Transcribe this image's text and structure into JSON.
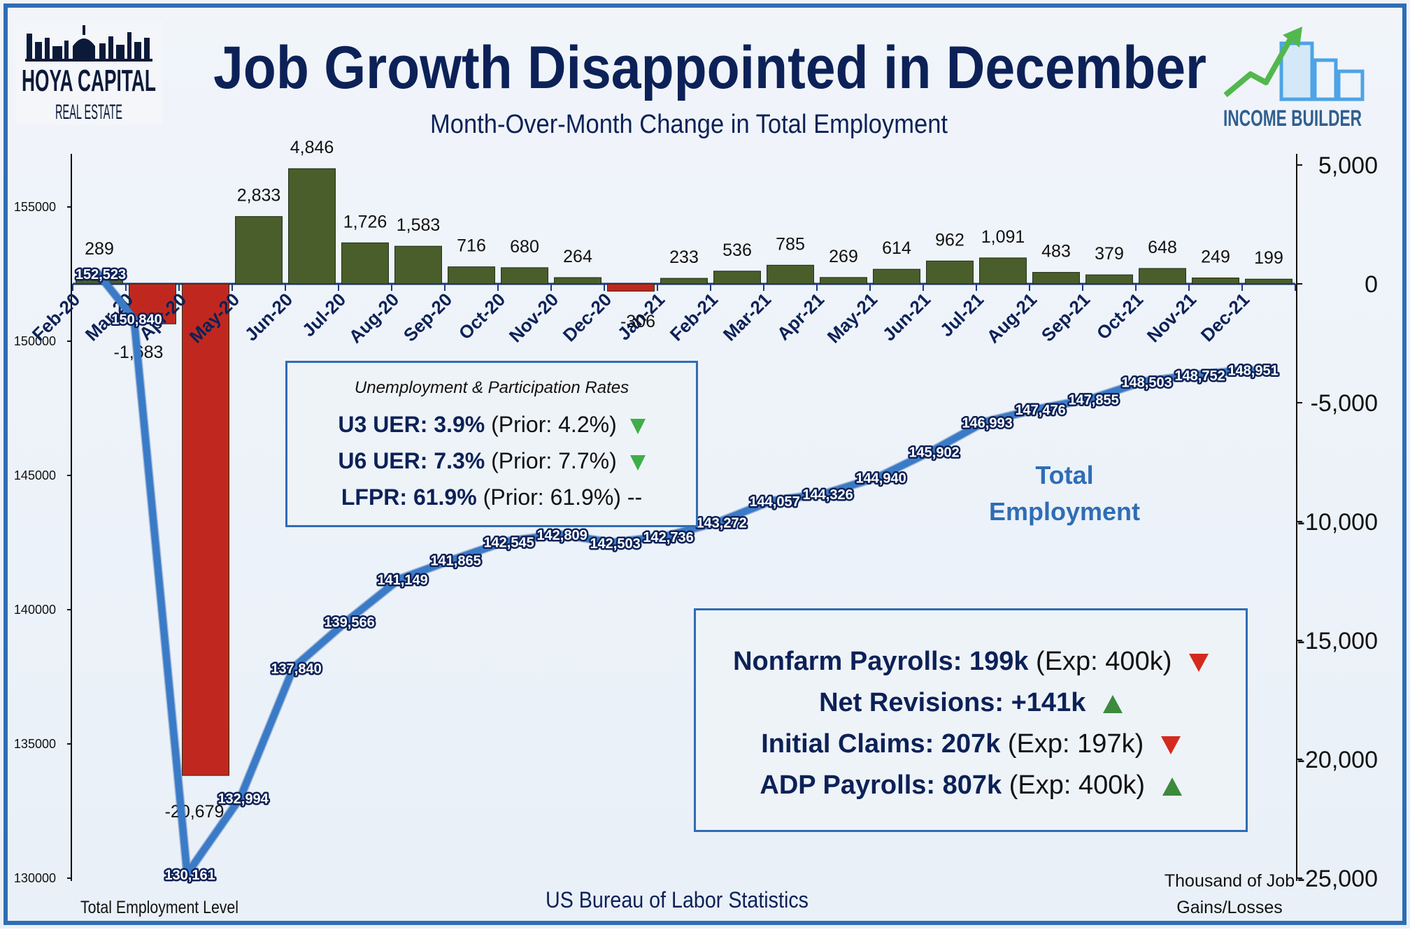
{
  "header": {
    "title": "Job Growth Disappointed in December",
    "subtitle": "Month-Over-Month Change in Total Employment"
  },
  "logos": {
    "left_line1": "HOYA CAPITAL",
    "left_line2": "REAL ESTATE",
    "right": "INCOME BUILDER"
  },
  "footer": {
    "left_axis_label": "Total Employment Level",
    "source": "US Bureau of Labor Statistics",
    "right_axis_label_1": "Thousand of Job",
    "right_axis_label_2": "Gains/Losses"
  },
  "series_label": {
    "line1": "Total",
    "line2": "Employment"
  },
  "rates_box": {
    "heading": "Unemployment & Participation Rates",
    "rows": [
      {
        "label": "U3 UER: 3.9%",
        "detail": "(Prior: 4.2%)",
        "trend": "down"
      },
      {
        "label": "U6 UER: 7.3%",
        "detail": "(Prior: 7.7%)",
        "trend": "down"
      },
      {
        "label": "LFPR: 61.9%",
        "detail": "(Prior: 61.9%) --",
        "trend": "flat"
      }
    ]
  },
  "stats_box": {
    "rows": [
      {
        "label": "Nonfarm Payrolls: 199k",
        "detail": "(Exp: 400k)",
        "trend": "down"
      },
      {
        "label": "Net Revisions: +141k",
        "detail": "",
        "trend": "up"
      },
      {
        "label": "Initial Claims: 207k",
        "detail": "(Exp: 197k)",
        "trend": "down"
      },
      {
        "label": "ADP Payrolls: 807k",
        "detail": "(Exp: 400k)",
        "trend": "up"
      }
    ]
  },
  "colors": {
    "positive_bar": "#4a5e2c",
    "negative_bar": "#c0281f",
    "line": "#3a7bc8",
    "title": "#0c2157",
    "label_blue": "#2f6db5"
  },
  "chart_data": {
    "type": "bar",
    "categories": [
      "Feb-20",
      "Mar-20",
      "Apr-20",
      "May-20",
      "Jun-20",
      "Jul-20",
      "Aug-20",
      "Sep-20",
      "Oct-20",
      "Nov-20",
      "Dec-20",
      "Jan-21",
      "Feb-21",
      "Mar-21",
      "Apr-21",
      "May-21",
      "Jun-21",
      "Jul-21",
      "Aug-21",
      "Sep-21",
      "Oct-21",
      "Nov-21",
      "Dec-21"
    ],
    "change_labels": [
      "289",
      "-1,683",
      "-20,679",
      "2,833",
      "4,846",
      "1,726",
      "1,583",
      "716",
      "680",
      "264",
      "-306",
      "233",
      "536",
      "785",
      "269",
      "614",
      "962",
      "1,091",
      "483",
      "379",
      "648",
      "249",
      "199"
    ],
    "change_values": [
      289,
      -1683,
      -20679,
      2833,
      4846,
      1726,
      1583,
      716,
      680,
      264,
      -306,
      233,
      536,
      785,
      269,
      614,
      962,
      1091,
      483,
      379,
      648,
      249,
      199
    ],
    "level_labels": [
      "152,523",
      "150,840",
      "130,161",
      "132,994",
      "137,840",
      "139,566",
      "141,149",
      "141,865",
      "142,545",
      "142,809",
      "142,503",
      "142,736",
      "143,272",
      "144,057",
      "144,326",
      "144,940",
      "145,902",
      "146,993",
      "147,476",
      "147,855",
      "148,503",
      "148,752",
      "148,951"
    ],
    "level_values": [
      152523,
      150840,
      130161,
      132994,
      137840,
      139566,
      141149,
      141865,
      142545,
      142809,
      142503,
      142736,
      143272,
      144057,
      144326,
      144940,
      145902,
      146993,
      147476,
      147855,
      148503,
      148752,
      148951
    ],
    "left_axis": {
      "ticks": [
        "155000",
        "150000",
        "145000",
        "140000",
        "135000",
        "130000"
      ],
      "tick_values": [
        155000,
        150000,
        145000,
        140000,
        135000,
        130000
      ],
      "range": [
        130000,
        157000
      ]
    },
    "right_axis": {
      "ticks": [
        "5,000",
        "0",
        "-5,000",
        "-10,000",
        "-15,000",
        "-20,000",
        "-25,000"
      ],
      "tick_values": [
        5000,
        0,
        -5000,
        -10000,
        -15000,
        -20000,
        -25000
      ],
      "range": [
        -25000,
        5000
      ]
    }
  }
}
